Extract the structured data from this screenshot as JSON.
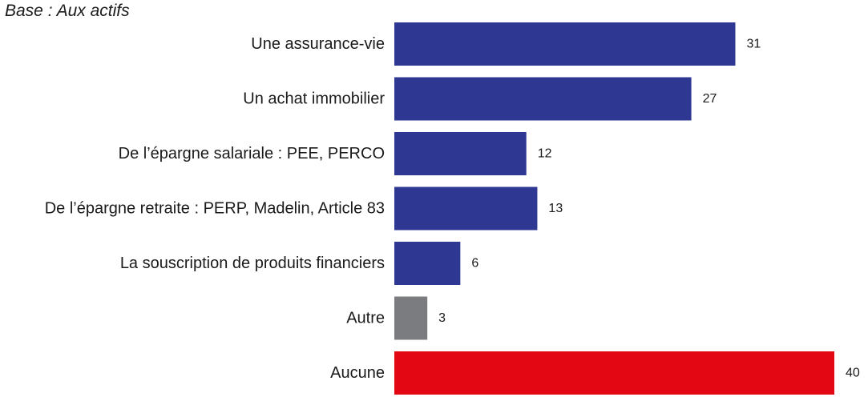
{
  "header": {
    "base_note": "Base : Aux actifs"
  },
  "chart_data": {
    "type": "bar",
    "orientation": "horizontal",
    "categories": [
      "Une assurance-vie",
      "Un achat immobilier",
      "De l’épargne salariale : PEE, PERCO",
      "De l’épargne retraite : PERP, Madelin, Article 83",
      "La souscription de produits financiers",
      "Autre",
      "Aucune"
    ],
    "values": [
      31,
      27,
      12,
      13,
      6,
      3,
      40
    ],
    "data_labels": [
      "31",
      "27",
      "12",
      "13",
      "6",
      "3",
      "40"
    ],
    "bar_colors": [
      "#2e3792",
      "#2e3792",
      "#2e3792",
      "#2e3792",
      "#2e3792",
      "#7b7c80",
      "#e30613"
    ],
    "xlim": [
      0,
      40
    ],
    "grid": false,
    "legend": "none"
  }
}
